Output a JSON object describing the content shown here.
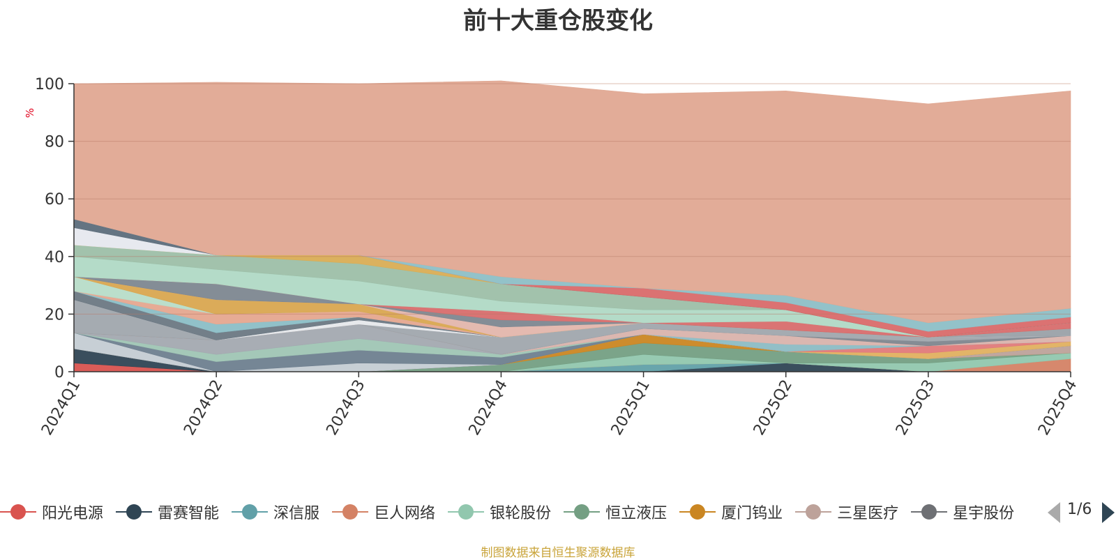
{
  "title": "前十大重仓股变化",
  "source_note": "制图数据来自恒生聚源数据库",
  "pager": {
    "text": "1/6"
  },
  "chart_data": {
    "type": "area",
    "stacked": true,
    "ylabel": "%",
    "ylim": [
      0,
      100
    ],
    "yticks": [
      0,
      20,
      40,
      60,
      80,
      100
    ],
    "grid": true,
    "legend_position": "bottom",
    "categories": [
      "2024Q1",
      "2024Q2",
      "2024Q3",
      "2024Q4",
      "2025Q1",
      "2025Q2",
      "2025Q3",
      "2025Q4"
    ],
    "series": [
      {
        "name": "阳光电源",
        "color": "#d9534f",
        "values": [
          3,
          0,
          0,
          0,
          0,
          0,
          0,
          0
        ]
      },
      {
        "name": "雷赛智能",
        "color": "#2f4554",
        "values": [
          5,
          0,
          0,
          0,
          0,
          3,
          0,
          0
        ]
      },
      {
        "name": "深信服",
        "color": "#61a0a8",
        "values": [
          0,
          0,
          0,
          0,
          2.5,
          0,
          0,
          0
        ]
      },
      {
        "name": "巨人网络",
        "color": "#d48265",
        "values": [
          0,
          0,
          0,
          0,
          0,
          0,
          0,
          4.5
        ]
      },
      {
        "name": "银轮股份",
        "color": "#91c7ae",
        "values": [
          0,
          0,
          0,
          0,
          3.5,
          0,
          3,
          2
        ]
      },
      {
        "name": "恒立液压",
        "color": "#749f83",
        "values": [
          0,
          0,
          0,
          2.5,
          4,
          4,
          1.5,
          0
        ]
      },
      {
        "name": "厦门钨业",
        "color": "#ca8622",
        "values": [
          0,
          0,
          0,
          0,
          3,
          0,
          0,
          0
        ]
      },
      {
        "name": "三星医疗",
        "color": "#bda29a",
        "values": [
          0,
          0,
          0,
          0,
          0,
          0,
          0,
          2.5
        ]
      },
      {
        "name": "星宇股份",
        "color": "#6e7074",
        "values": [
          0,
          0,
          0,
          0,
          0,
          0,
          0,
          0
        ]
      },
      {
        "name": "",
        "color": "#546570",
        "values": [
          0,
          0,
          0,
          0,
          0,
          0,
          0,
          0
        ]
      },
      {
        "name": "",
        "color": "#c4ccd3",
        "values": [
          5.5,
          0,
          3,
          0,
          0,
          0,
          0,
          0
        ]
      },
      {
        "name": "",
        "color": "#6e7f8f",
        "values": [
          0,
          3.5,
          4.5,
          2.5,
          0,
          0,
          0,
          0
        ]
      },
      {
        "name": "",
        "color": "#9fc5b4",
        "values": [
          0,
          2.5,
          4,
          1,
          0,
          0,
          0,
          0
        ]
      },
      {
        "name": "",
        "color": "#a3a9b0",
        "values": [
          0,
          5,
          5,
          0,
          0,
          0,
          0,
          0
        ]
      },
      {
        "name": "",
        "color": "#e0b060",
        "values": [
          0,
          0,
          0,
          0,
          0,
          0,
          2,
          1.5
        ]
      },
      {
        "name": "",
        "color": "#e07a7a",
        "values": [
          0,
          0,
          0,
          0,
          0,
          0,
          2.5,
          0
        ]
      },
      {
        "name": "",
        "color": "#8cbcc4",
        "values": [
          0,
          0,
          0,
          0,
          0,
          2.5,
          0,
          0
        ]
      },
      {
        "name": "",
        "color": "#d9b3ac",
        "values": [
          0,
          0,
          0,
          0,
          2,
          3,
          0,
          2
        ]
      },
      {
        "name": "",
        "color": "#7e868e",
        "values": [
          0,
          0,
          0,
          0,
          0,
          0,
          1.5,
          0
        ]
      },
      {
        "name": "",
        "color": "#a0a6ad",
        "values": [
          11.5,
          0,
          0,
          6,
          2,
          2,
          1.5,
          0
        ]
      },
      {
        "name": "",
        "color": "#e6e8eb",
        "values": [
          0,
          0,
          1.5,
          0,
          0,
          0,
          0,
          0
        ]
      },
      {
        "name": "",
        "color": "#9aa1a8",
        "values": [
          0,
          0,
          0,
          0,
          0,
          0,
          0,
          2.5
        ]
      },
      {
        "name": "",
        "color": "#6b7883",
        "values": [
          3,
          2.5,
          1,
          0,
          0,
          0,
          0,
          0
        ]
      },
      {
        "name": "",
        "color": "#8bbec6",
        "values": [
          0,
          3,
          0,
          0,
          0,
          0,
          0,
          0
        ]
      },
      {
        "name": "",
        "color": "#e5a68f",
        "values": [
          0,
          3.5,
          2,
          0,
          0,
          0,
          0,
          0
        ]
      },
      {
        "name": "",
        "color": "#b7dcc8",
        "values": [
          5,
          0,
          0,
          0,
          0,
          0,
          0,
          0
        ]
      },
      {
        "name": "",
        "color": "#d9a650",
        "values": [
          0,
          5,
          2.5,
          0,
          0,
          0,
          0,
          0
        ]
      },
      {
        "name": "",
        "color": "#e3b6ac",
        "values": [
          0,
          0,
          0,
          3.5,
          0,
          0,
          0,
          0
        ]
      },
      {
        "name": "",
        "color": "#7d8790",
        "values": [
          0,
          5.5,
          0,
          2.5,
          0,
          0,
          0,
          0
        ]
      },
      {
        "name": "",
        "color": "#d86d6d",
        "values": [
          0,
          0,
          0,
          3,
          0,
          3,
          0,
          2
        ]
      },
      {
        "name": "",
        "color": "#b0d9c5",
        "values": [
          7,
          5,
          8,
          3.5,
          4.5,
          4,
          0,
          0
        ]
      },
      {
        "name": "",
        "color": "#9dbfa8",
        "values": [
          4,
          5,
          6,
          6,
          4.5,
          0,
          0,
          0
        ]
      },
      {
        "name": "",
        "color": "#d9ad55",
        "values": [
          0,
          0,
          3,
          0,
          0,
          0,
          0,
          0
        ]
      },
      {
        "name": "",
        "color": "#e6e8ee",
        "values": [
          6,
          0,
          0,
          0,
          0,
          0,
          0,
          0
        ]
      },
      {
        "name": "",
        "color": "#5c6d7b",
        "values": [
          3,
          0,
          0,
          0,
          0,
          0,
          0,
          0
        ]
      },
      {
        "name": "",
        "color": "#d96a6a",
        "values": [
          0,
          0,
          0,
          0,
          3,
          2.5,
          2,
          2
        ]
      },
      {
        "name": "",
        "color": "#8dbfc6",
        "values": [
          0,
          0,
          0,
          2.5,
          0,
          2.5,
          3,
          3
        ]
      },
      {
        "name": "",
        "color": "#e0a892",
        "values": [
          47,
          60,
          59.5,
          68,
          67.5,
          71,
          76,
          75.5
        ]
      }
    ]
  }
}
